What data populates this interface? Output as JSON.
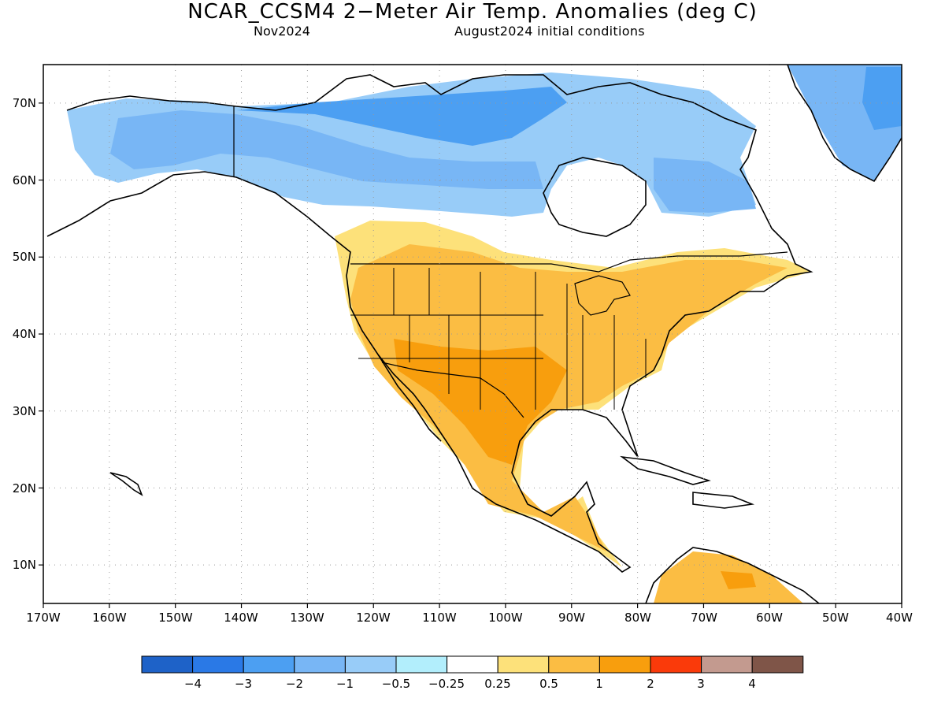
{
  "title": "NCAR_CCSM4 2−Meter Air Temp. Anomalies (deg C)",
  "subtitle_left": "Nov2024",
  "subtitle_right": "August2024 initial conditions",
  "map": {
    "lat_labels": [
      "70N",
      "60N",
      "50N",
      "40N",
      "30N",
      "20N",
      "10N"
    ],
    "lon_labels": [
      "170W",
      "160W",
      "150W",
      "140W",
      "130W",
      "120W",
      "110W",
      "100W",
      "90W",
      "80W",
      "70W",
      "60W",
      "50W",
      "40W"
    ],
    "lat_range": [
      5,
      75
    ],
    "lon_range": [
      -170,
      -40
    ],
    "grid": true
  },
  "legend": {
    "labels": [
      "−4",
      "−3",
      "−2",
      "−1",
      "−0.5",
      "−0.25",
      "0.25",
      "0.5",
      "1",
      "2",
      "3",
      "4"
    ],
    "colors": [
      "#1e62c8",
      "#2a79e6",
      "#4c9ff2",
      "#78b6f5",
      "#98ccf8",
      "#b2eefc",
      "#ffffff",
      "#fde17a",
      "#fbbd43",
      "#f89e0d",
      "#fa3a0a",
      "#c39a8f",
      "#7f5548"
    ]
  }
}
